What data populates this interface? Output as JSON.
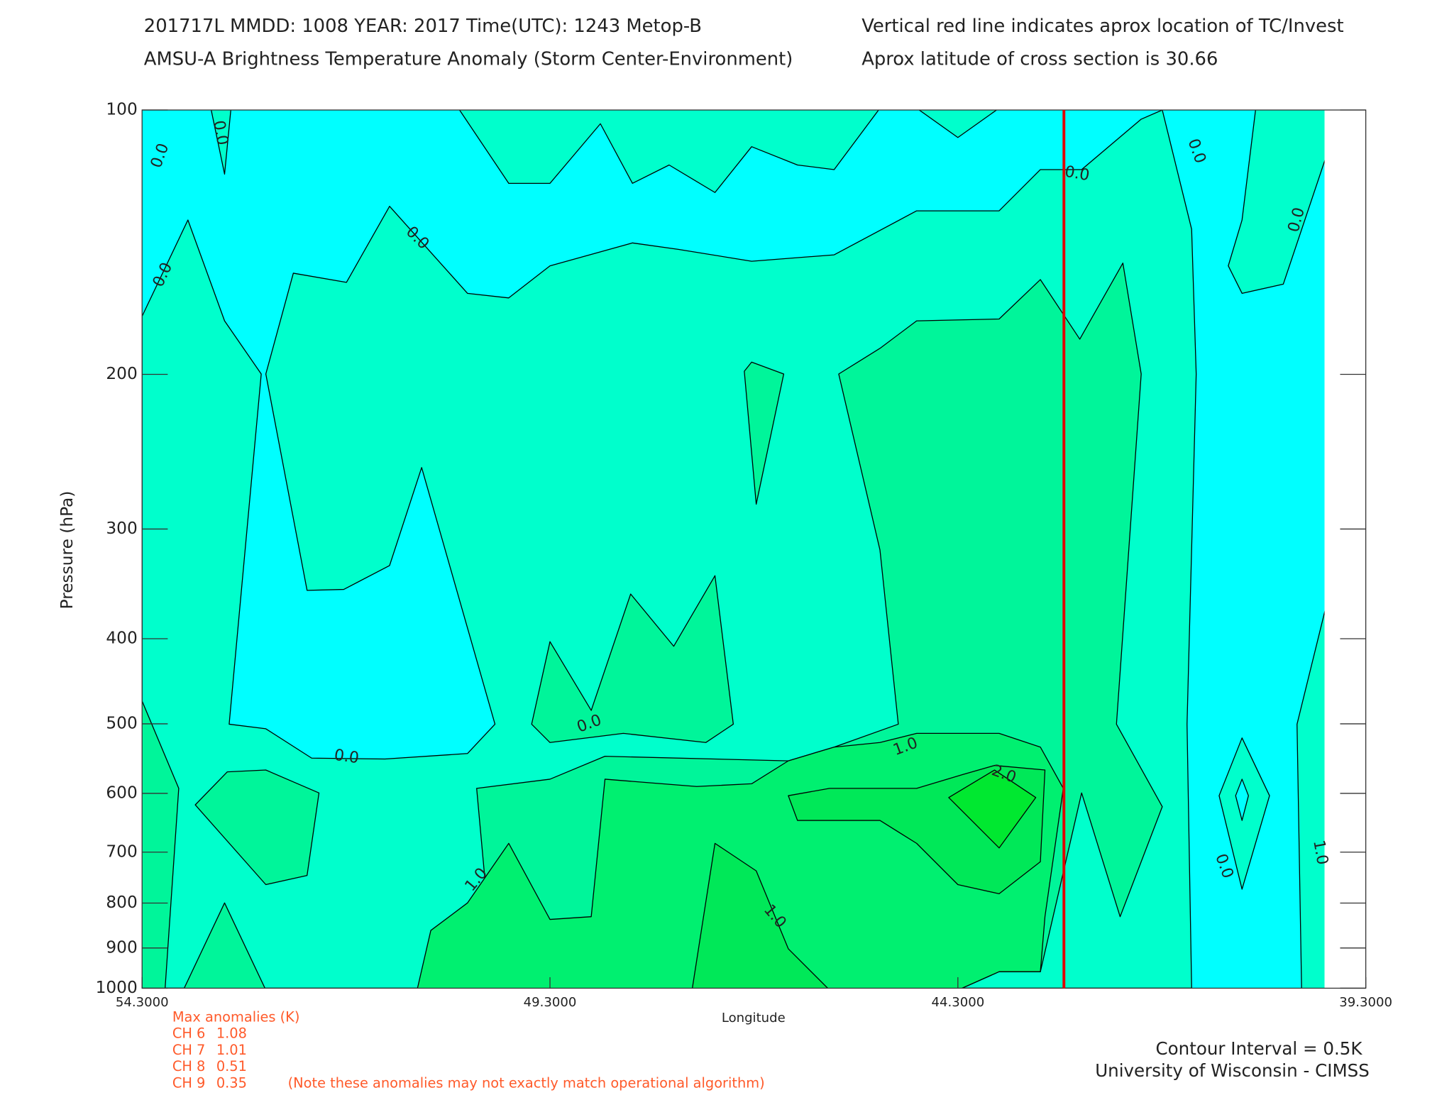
{
  "chart_data": {
    "type": "contour",
    "title": "201717L  MMDD: 1008 YEAR: 2017 Time(UTC): 1243 Metop-B",
    "subtitle": "AMSU-A Brightness Temperature Anomaly (Storm Center-Environment)",
    "note_right_1": "Vertical red line indicates aprox location of TC/Invest",
    "note_right_2": "Aprox latitude of cross section is 30.66",
    "x_label": "Longitude",
    "y_label": "Pressure (hPa)",
    "xlim": [
      54.3,
      39.3
    ],
    "xticks": [
      {
        "value": 54.3,
        "label": "54.3000"
      },
      {
        "value": 49.3,
        "label": "49.3000"
      },
      {
        "value": 44.3,
        "label": "44.3000"
      },
      {
        "value": 39.3,
        "label": "39.3000"
      }
    ],
    "ylim": [
      1000,
      100
    ],
    "yticks": [
      100,
      200,
      300,
      400,
      500,
      600,
      700,
      800,
      900,
      1000
    ],
    "y_scale": "log",
    "tc_longitude": 43.0,
    "tc_color": "#e00000",
    "contour_labels": [
      "0.0",
      "0.0",
      "0.0",
      "0.0",
      "0.0",
      "0.0",
      "0.0",
      "0.0",
      "0.0",
      "1.0",
      "2.0",
      "1.0",
      "1.0",
      "0.0",
      "1.0"
    ],
    "max_anomalies": {
      "title": "Max anomalies (K)",
      "channels": [
        {
          "label": "CH 6",
          "value": 1.08
        },
        {
          "label": "CH 7",
          "value": 1.01
        },
        {
          "label": "CH 8",
          "value": 0.51
        },
        {
          "label": "CH 9",
          "value": 0.35
        }
      ],
      "note": "(Note these anomalies may not exactly match operational algorithm)"
    },
    "contour_interval": "Contour Interval = 0.5K",
    "credit": "University of Wisconsin - CIMSS"
  }
}
